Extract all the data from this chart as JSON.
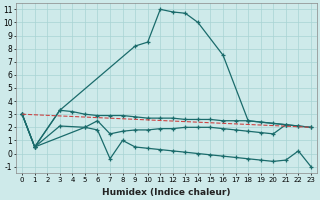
{
  "xlabel": "Humidex (Indice chaleur)",
  "xlim": [
    -0.5,
    23.5
  ],
  "ylim": [
    -1.5,
    11.5
  ],
  "xticks": [
    0,
    1,
    2,
    3,
    4,
    5,
    6,
    7,
    8,
    9,
    10,
    11,
    12,
    13,
    14,
    15,
    16,
    17,
    18,
    19,
    20,
    21,
    22,
    23
  ],
  "yticks": [
    -1,
    0,
    1,
    2,
    3,
    4,
    5,
    6,
    7,
    8,
    9,
    10,
    11
  ],
  "background_color": "#ceeaea",
  "grid_color": "#a8d4d4",
  "line_color": "#1a6b6b",
  "red_color": "#cc4444",
  "line_peak_x": [
    0,
    1,
    3,
    9,
    10,
    11,
    12,
    13,
    14,
    16,
    18,
    21
  ],
  "line_peak_y": [
    3.0,
    0.5,
    3.3,
    8.2,
    8.5,
    11.0,
    10.8,
    10.7,
    10.0,
    7.5,
    2.5,
    2.2
  ],
  "line_flat_x": [
    0,
    1,
    3,
    4,
    5,
    6,
    7,
    8,
    9,
    10,
    11,
    12,
    13,
    14,
    15,
    16,
    17,
    18,
    19,
    20,
    21,
    22,
    23
  ],
  "line_flat_y": [
    3.0,
    0.5,
    3.3,
    3.2,
    3.0,
    2.9,
    2.9,
    2.9,
    2.8,
    2.7,
    2.7,
    2.7,
    2.6,
    2.6,
    2.6,
    2.5,
    2.5,
    2.5,
    2.4,
    2.3,
    2.2,
    2.1,
    2.0
  ],
  "line_low_x": [
    0,
    1,
    3,
    5,
    6,
    7,
    8,
    9,
    10,
    11,
    12,
    13,
    14,
    15,
    16,
    17,
    18,
    19,
    20,
    21,
    22,
    23
  ],
  "line_low_y": [
    3.0,
    0.5,
    2.1,
    2.0,
    1.8,
    -0.4,
    1.0,
    0.5,
    0.4,
    0.3,
    0.2,
    0.1,
    0.0,
    -0.1,
    -0.2,
    -0.3,
    -0.4,
    -0.5,
    -0.6,
    -0.5,
    0.2,
    -1.0
  ],
  "line_mid_x": [
    0,
    1,
    5,
    6,
    7,
    8,
    9,
    10,
    11,
    12,
    13,
    14,
    15,
    16,
    17,
    18,
    19,
    20,
    21,
    22,
    23
  ],
  "line_mid_y": [
    3.0,
    0.5,
    2.0,
    2.5,
    1.5,
    1.7,
    1.8,
    1.8,
    1.9,
    1.9,
    2.0,
    2.0,
    2.0,
    1.9,
    1.8,
    1.7,
    1.6,
    1.5,
    2.2,
    2.1,
    2.0
  ],
  "red_x": [
    0,
    23
  ],
  "red_y": [
    3.0,
    2.0
  ]
}
